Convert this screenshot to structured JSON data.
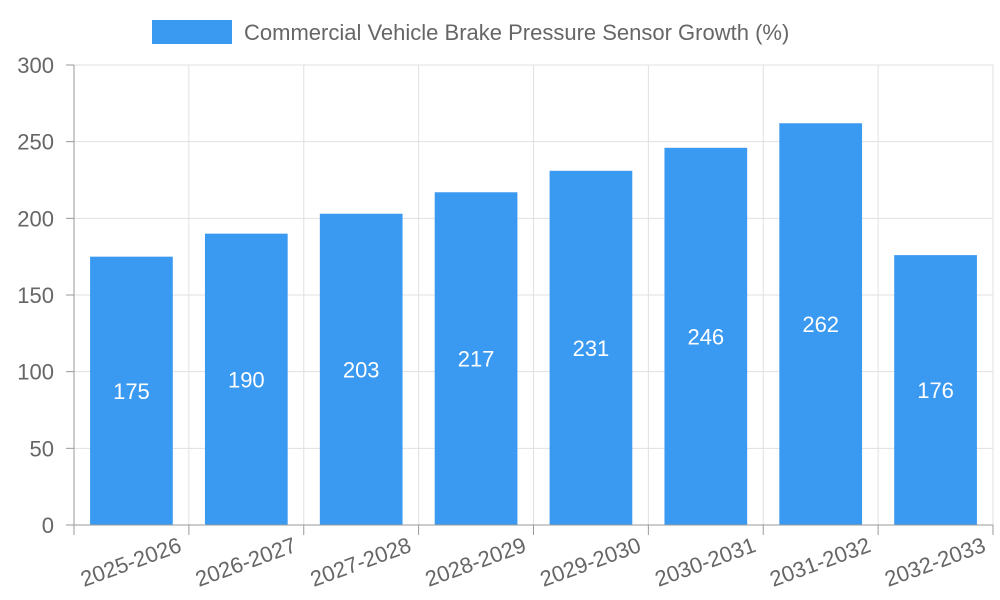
{
  "chart_data": {
    "type": "bar",
    "categories": [
      "2025-2026",
      "2026-2027",
      "2027-2028",
      "2028-2029",
      "2029-2030",
      "2030-2031",
      "2031-2032",
      "2032-2033"
    ],
    "series": [
      {
        "name": "Commercial Vehicle Brake Pressure Sensor Growth (%)",
        "values": [
          175,
          190,
          203,
          217,
          231,
          246,
          262,
          176
        ],
        "color": "#3a99f0"
      }
    ],
    "ylim": [
      0,
      300
    ],
    "yticks": [
      0,
      50,
      100,
      150,
      200,
      250,
      300
    ],
    "grid": true,
    "legend_position": "top-center",
    "data_labels": true
  }
}
